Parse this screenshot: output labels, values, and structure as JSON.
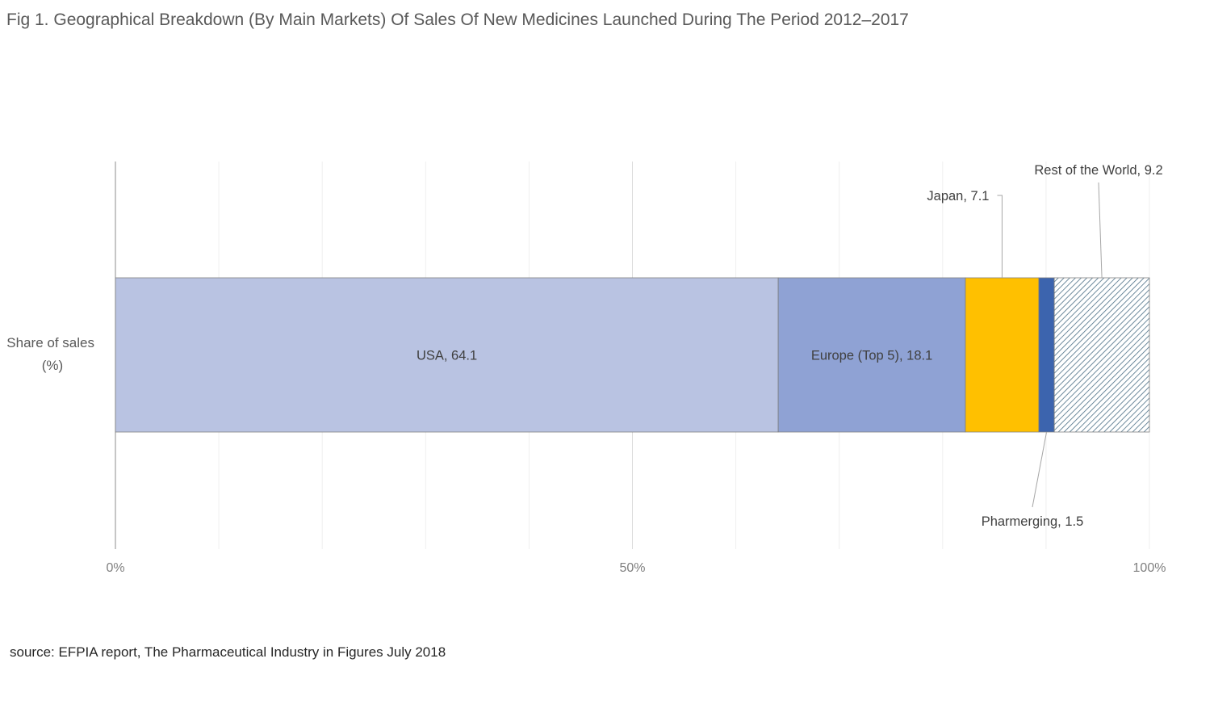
{
  "title": "Fig 1. Geographical Breakdown (By Main Markets) Of Sales Of New Medicines Launched During The Period 2012–2017",
  "source": "source: EFPIA report, The Pharmaceutical Industry in Figures July 2018",
  "chart_data": {
    "type": "bar",
    "orientation": "horizontal",
    "stacking": "percent",
    "categories": [
      "Share of sales (%)"
    ],
    "category_label_lines": [
      "Share of sales",
      "(%)"
    ],
    "xlim": [
      0,
      100
    ],
    "x_ticks": [
      "0%",
      "50%",
      "100%"
    ],
    "grid": true,
    "series": [
      {
        "name": "USA",
        "value": 64.1,
        "label": "USA, 64.1",
        "color": "#b9c3e2",
        "pattern": "solid",
        "label_position": "center"
      },
      {
        "name": "Europe (Top 5)",
        "value": 18.1,
        "label": "Europe (Top 5), 18.1",
        "color": "#8fa2d4",
        "pattern": "solid",
        "label_position": "center"
      },
      {
        "name": "Japan",
        "value": 7.1,
        "label": "Japan, 7.1",
        "color": "#ffc000",
        "pattern": "solid",
        "label_position": "above-callout"
      },
      {
        "name": "Pharmerging",
        "value": 1.5,
        "label": "Pharmerging, 1.5",
        "color": "#3c64ae",
        "pattern": "solid",
        "label_position": "below-callout"
      },
      {
        "name": "Rest of the World",
        "value": 9.2,
        "label": "Rest of the World, 9.2",
        "color": "#4a6e85",
        "pattern": "diagonal-hatch",
        "label_position": "above-callout"
      }
    ]
  }
}
